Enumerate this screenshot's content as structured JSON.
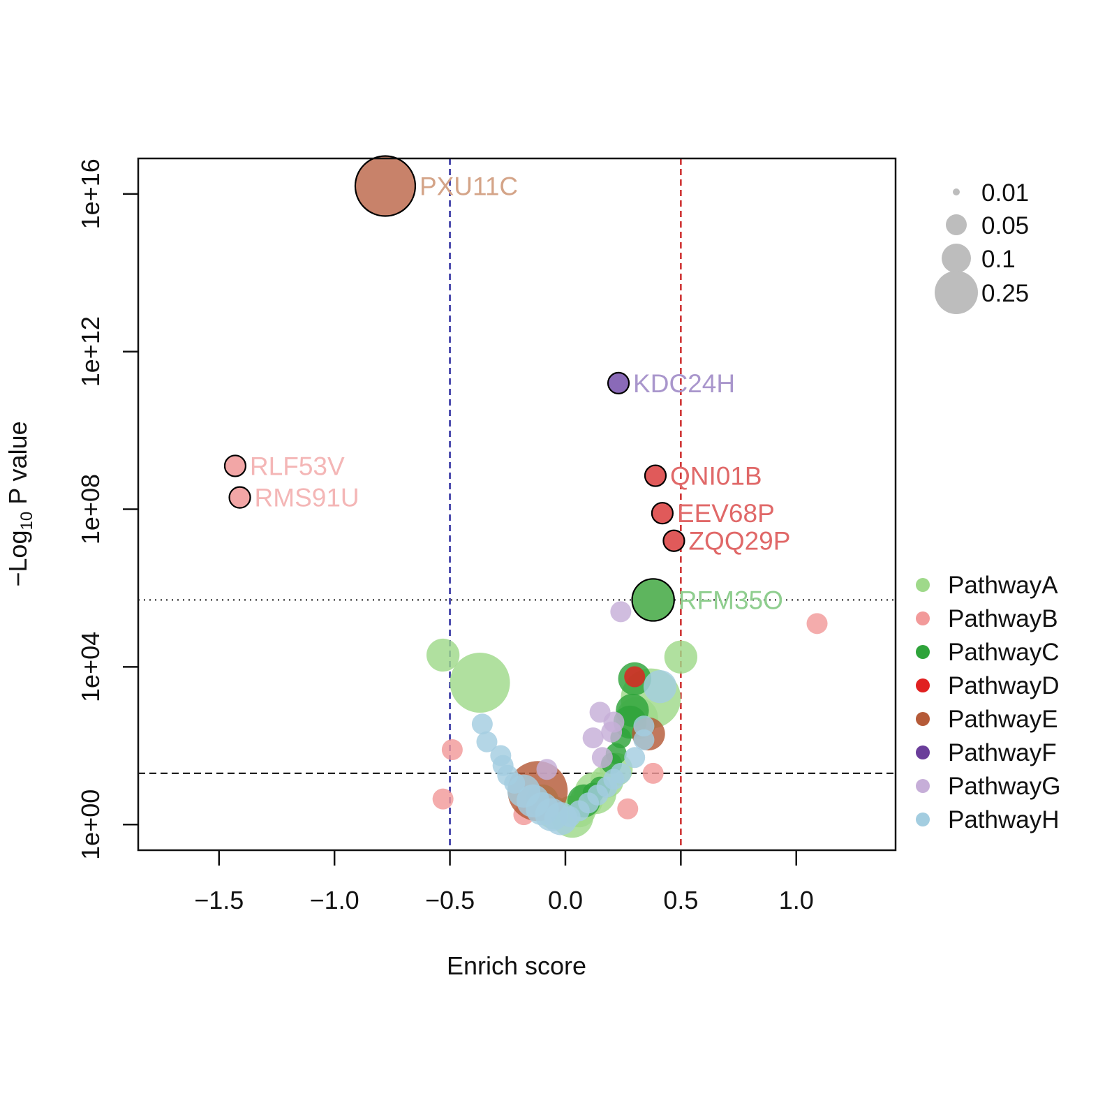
{
  "chart_data": {
    "type": "scatter",
    "xlabel": "Enrich score",
    "ylabel_prefix": "−Log",
    "ylabel_sub": "10",
    "ylabel_suffix": " P value",
    "xlim": [
      -1.85,
      1.43
    ],
    "ylog10_lim": [
      -0.65,
      16.9
    ],
    "x_ticks": [
      {
        "value": -1.5,
        "label": "−1.5"
      },
      {
        "value": -1.0,
        "label": "−1.0"
      },
      {
        "value": -0.5,
        "label": "−0.5"
      },
      {
        "value": 0.0,
        "label": "0.0"
      },
      {
        "value": 0.5,
        "label": "0.5"
      },
      {
        "value": 1.0,
        "label": "1.0"
      }
    ],
    "y_ticks": [
      {
        "log": 0,
        "label": "1e+00"
      },
      {
        "log": 4,
        "label": "1e+04"
      },
      {
        "log": 8,
        "label": "1e+08"
      },
      {
        "log": 12,
        "label": "1e+12"
      },
      {
        "log": 16,
        "label": "1e+16"
      }
    ],
    "reference_lines": {
      "vertical": [
        {
          "x": -0.5,
          "color": "#2b2b9e",
          "dash": "dashed"
        },
        {
          "x": 0.5,
          "color": "#cc2a2a",
          "dash": "dashed"
        }
      ],
      "horizontal": [
        {
          "log": 5.7,
          "color": "#222222",
          "dash": "dotted"
        },
        {
          "log": 1.3,
          "color": "#222222",
          "dash": "dashed"
        }
      ]
    },
    "pathways": [
      {
        "name": "PathwayA",
        "color": "#9fd98a"
      },
      {
        "name": "PathwayB",
        "color": "#f29a9a"
      },
      {
        "name": "PathwayC",
        "color": "#2ea33a"
      },
      {
        "name": "PathwayD",
        "color": "#e02020"
      },
      {
        "name": "PathwayE",
        "color": "#b55a38"
      },
      {
        "name": "PathwayF",
        "color": "#6a3d9a"
      },
      {
        "name": "PathwayG",
        "color": "#c6aed8"
      },
      {
        "name": "PathwayH",
        "color": "#a3cde0"
      }
    ],
    "size_legend": [
      {
        "value": 0.01,
        "label": "0.01"
      },
      {
        "value": 0.05,
        "label": "0.05"
      },
      {
        "value": 0.1,
        "label": "0.1"
      },
      {
        "value": 0.25,
        "label": "0.25"
      }
    ],
    "labeled_points": [
      {
        "label": "PXU11C",
        "x": -0.78,
        "log": 16.2,
        "size": 0.25,
        "pathway": "PathwayE",
        "fill": "#c8826a",
        "text_color": "#d4a488"
      },
      {
        "label": "KDC24H",
        "x": 0.23,
        "log": 11.2,
        "size": 0.01,
        "pathway": "PathwayF",
        "fill": "#8a6ab8",
        "text_color": "#a996cc"
      },
      {
        "label": "RLF53V",
        "x": -1.43,
        "log": 9.1,
        "size": 0.01,
        "pathway": "PathwayB",
        "fill": "#f2a6a6",
        "text_color": "#f4b6b6"
      },
      {
        "label": "RMS91U",
        "x": -1.41,
        "log": 8.3,
        "size": 0.01,
        "pathway": "PathwayB",
        "fill": "#f2a6a6",
        "text_color": "#f4b6b6"
      },
      {
        "label": "QNI01B",
        "x": 0.39,
        "log": 8.85,
        "size": 0.01,
        "pathway": "PathwayD",
        "fill": "#e05a5a",
        "text_color": "#e06868"
      },
      {
        "label": "EEV68P",
        "x": 0.42,
        "log": 7.9,
        "size": 0.01,
        "pathway": "PathwayD",
        "fill": "#e05a5a",
        "text_color": "#e06868"
      },
      {
        "label": "ZQQ29P",
        "x": 0.47,
        "log": 7.2,
        "size": 0.01,
        "pathway": "PathwayD",
        "fill": "#e05a5a",
        "text_color": "#e06868"
      },
      {
        "label": "RFM35O",
        "x": 0.38,
        "log": 5.7,
        "size": 0.1,
        "pathway": "PathwayC",
        "fill": "#5eb55e",
        "text_color": "#8fce8f"
      }
    ],
    "points": [
      {
        "x": -0.53,
        "log": 4.3,
        "size": 0.05,
        "pathway": "PathwayA"
      },
      {
        "x": -0.37,
        "log": 3.6,
        "size": 0.25,
        "pathway": "PathwayA"
      },
      {
        "x": 0.5,
        "log": 4.25,
        "size": 0.05,
        "pathway": "PathwayA"
      },
      {
        "x": 0.37,
        "log": 3.2,
        "size": 0.25,
        "pathway": "PathwayA"
      },
      {
        "x": 0.31,
        "log": 2.7,
        "size": 0.1,
        "pathway": "PathwayA"
      },
      {
        "x": 0.22,
        "log": 1.4,
        "size": 0.05,
        "pathway": "PathwayA"
      },
      {
        "x": 0.13,
        "log": 0.8,
        "size": 0.1,
        "pathway": "PathwayA"
      },
      {
        "x": 0.03,
        "log": 0.2,
        "size": 0.1,
        "pathway": "PathwayA"
      },
      {
        "x": -0.05,
        "log": 0.3,
        "size": 0.05,
        "pathway": "PathwayA"
      },
      {
        "x": -0.1,
        "log": 0.6,
        "size": 0.05,
        "pathway": "PathwayA"
      },
      {
        "x": 0.06,
        "log": 0.35,
        "size": 0.05,
        "pathway": "PathwayA"
      },
      {
        "x": 0.18,
        "log": 1.1,
        "size": 0.05,
        "pathway": "PathwayA"
      },
      {
        "x": 0.09,
        "log": 0.6,
        "size": 0.05,
        "pathway": "PathwayA"
      },
      {
        "x": 1.09,
        "log": 5.1,
        "size": 0.01,
        "pathway": "PathwayB"
      },
      {
        "x": -0.49,
        "log": 1.9,
        "size": 0.01,
        "pathway": "PathwayB"
      },
      {
        "x": -0.53,
        "log": 0.65,
        "size": 0.01,
        "pathway": "PathwayB"
      },
      {
        "x": 0.38,
        "log": 1.3,
        "size": 0.01,
        "pathway": "PathwayB"
      },
      {
        "x": 0.27,
        "log": 0.4,
        "size": 0.01,
        "pathway": "PathwayB"
      },
      {
        "x": -0.18,
        "log": 0.25,
        "size": 0.01,
        "pathway": "PathwayB"
      },
      {
        "x": 0.3,
        "log": 3.7,
        "size": 0.05,
        "pathway": "PathwayC"
      },
      {
        "x": 0.29,
        "log": 2.9,
        "size": 0.05,
        "pathway": "PathwayC"
      },
      {
        "x": 0.28,
        "log": 2.6,
        "size": 0.05,
        "pathway": "PathwayC"
      },
      {
        "x": 0.24,
        "log": 2.2,
        "size": 0.01,
        "pathway": "PathwayC"
      },
      {
        "x": 0.22,
        "log": 1.8,
        "size": 0.01,
        "pathway": "PathwayC"
      },
      {
        "x": 0.2,
        "log": 1.55,
        "size": 0.01,
        "pathway": "PathwayC"
      },
      {
        "x": 0.08,
        "log": 0.6,
        "size": 0.05,
        "pathway": "PathwayC"
      },
      {
        "x": 0.12,
        "log": 0.8,
        "size": 0.01,
        "pathway": "PathwayC"
      },
      {
        "x": 0.15,
        "log": 0.95,
        "size": 0.01,
        "pathway": "PathwayC"
      },
      {
        "x": 0.3,
        "log": 3.75,
        "size": 0.01,
        "pathway": "PathwayD"
      },
      {
        "x": -0.12,
        "log": 0.85,
        "size": 0.25,
        "pathway": "PathwayE"
      },
      {
        "x": 0.36,
        "log": 2.3,
        "size": 0.05,
        "pathway": "PathwayE"
      },
      {
        "x": 0.24,
        "log": 5.4,
        "size": 0.01,
        "pathway": "PathwayG"
      },
      {
        "x": 0.15,
        "log": 2.85,
        "size": 0.01,
        "pathway": "PathwayG"
      },
      {
        "x": 0.21,
        "log": 2.6,
        "size": 0.01,
        "pathway": "PathwayG"
      },
      {
        "x": 0.2,
        "log": 2.35,
        "size": 0.01,
        "pathway": "PathwayG"
      },
      {
        "x": 0.12,
        "log": 2.2,
        "size": 0.01,
        "pathway": "PathwayG"
      },
      {
        "x": 0.16,
        "log": 1.7,
        "size": 0.01,
        "pathway": "PathwayG"
      },
      {
        "x": -0.08,
        "log": 1.4,
        "size": 0.01,
        "pathway": "PathwayG"
      },
      {
        "x": 0.41,
        "log": 3.5,
        "size": 0.05,
        "pathway": "PathwayH"
      },
      {
        "x": 0.34,
        "log": 2.5,
        "size": 0.01,
        "pathway": "PathwayH"
      },
      {
        "x": 0.34,
        "log": 2.15,
        "size": 0.01,
        "pathway": "PathwayH"
      },
      {
        "x": 0.3,
        "log": 1.7,
        "size": 0.01,
        "pathway": "PathwayH"
      },
      {
        "x": 0.24,
        "log": 1.3,
        "size": 0.01,
        "pathway": "PathwayH"
      },
      {
        "x": -0.36,
        "log": 2.55,
        "size": 0.01,
        "pathway": "PathwayH"
      },
      {
        "x": -0.34,
        "log": 2.1,
        "size": 0.01,
        "pathway": "PathwayH"
      },
      {
        "x": -0.28,
        "log": 1.75,
        "size": 0.01,
        "pathway": "PathwayH"
      },
      {
        "x": -0.27,
        "log": 1.5,
        "size": 0.01,
        "pathway": "PathwayH"
      },
      {
        "x": -0.25,
        "log": 1.25,
        "size": 0.01,
        "pathway": "PathwayH"
      },
      {
        "x": -0.22,
        "log": 1.05,
        "size": 0.01,
        "pathway": "PathwayH"
      },
      {
        "x": -0.18,
        "log": 0.85,
        "size": 0.05,
        "pathway": "PathwayH"
      },
      {
        "x": -0.14,
        "log": 0.6,
        "size": 0.05,
        "pathway": "PathwayH"
      },
      {
        "x": -0.1,
        "log": 0.4,
        "size": 0.05,
        "pathway": "PathwayH"
      },
      {
        "x": -0.06,
        "log": 0.25,
        "size": 0.05,
        "pathway": "PathwayH"
      },
      {
        "x": -0.02,
        "log": 0.15,
        "size": 0.05,
        "pathway": "PathwayH"
      },
      {
        "x": 0.02,
        "log": 0.2,
        "size": 0.01,
        "pathway": "PathwayH"
      },
      {
        "x": 0.06,
        "log": 0.35,
        "size": 0.01,
        "pathway": "PathwayH"
      },
      {
        "x": 0.1,
        "log": 0.55,
        "size": 0.01,
        "pathway": "PathwayH"
      },
      {
        "x": 0.14,
        "log": 0.75,
        "size": 0.01,
        "pathway": "PathwayH"
      },
      {
        "x": 0.18,
        "log": 0.95,
        "size": 0.01,
        "pathway": "PathwayH"
      },
      {
        "x": 0.21,
        "log": 1.15,
        "size": 0.01,
        "pathway": "PathwayH"
      }
    ]
  }
}
